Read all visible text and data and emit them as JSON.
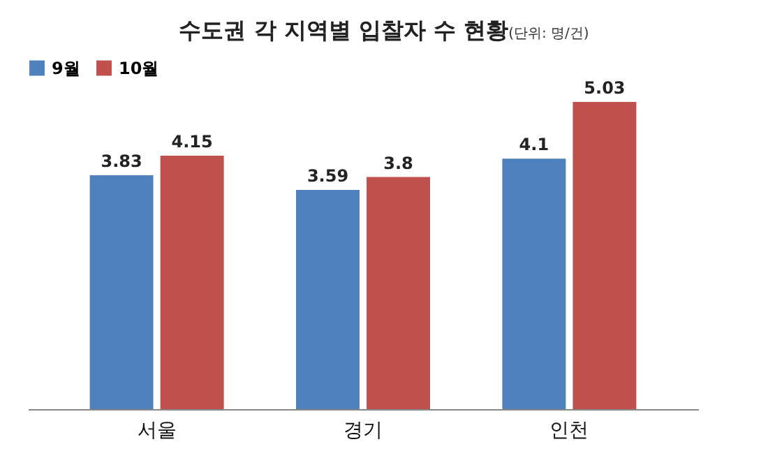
{
  "chart_data": {
    "type": "bar",
    "title": "수도권 각 지역별 입찰자 수 현황",
    "subtitle": "(단위: 명/건)",
    "categories": [
      "서울",
      "경기",
      "인천"
    ],
    "series": [
      {
        "name": "9월",
        "color": "#4f81bd",
        "values": [
          3.83,
          3.59,
          4.1
        ]
      },
      {
        "name": "10월",
        "color": "#c0504d",
        "values": [
          4.15,
          3.8,
          5.03
        ]
      }
    ],
    "data_labels": true,
    "legend": "top"
  }
}
